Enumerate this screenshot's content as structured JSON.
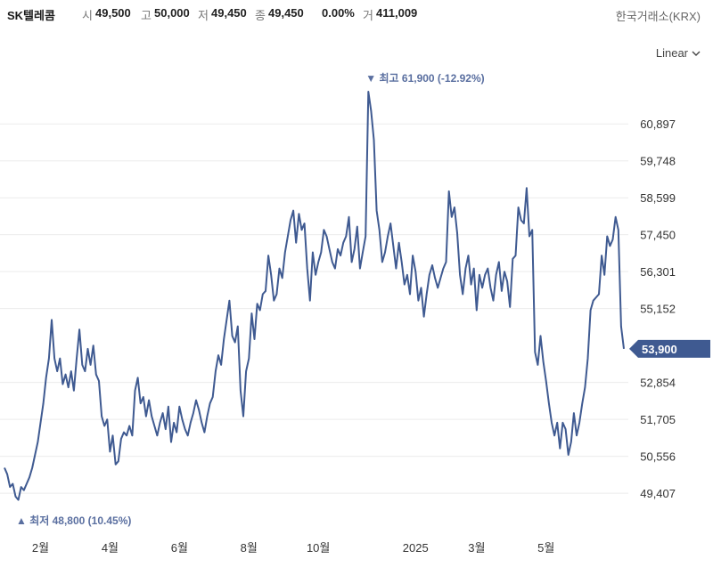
{
  "header": {
    "name": "SK텔레콤",
    "open_label": "시",
    "open": "49,500",
    "high_label": "고",
    "high": "50,000",
    "low_label": "저",
    "low": "49,450",
    "close_label": "종",
    "close": "49,450",
    "change": "0.00%",
    "volume_label": "거",
    "volume": "411,009",
    "exchange": "한국거래소(KRX)"
  },
  "scale_selector": {
    "label": "Linear",
    "icon": "chevron-down-icon"
  },
  "colors": {
    "line": "#3f5a91",
    "current_bg": "#3f5a91",
    "annotation": "#5a6fa0",
    "grid": "#ececec"
  },
  "chart_data": {
    "type": "line",
    "title": "",
    "xlabel": "",
    "ylabel": "",
    "ylim": [
      48400,
      62300
    ],
    "y_ticks": [
      "60,897",
      "59,748",
      "58,599",
      "57,450",
      "56,301",
      "55,152",
      "52,854",
      "51,705",
      "50,556",
      "49,407"
    ],
    "y_tick_values": [
      60897,
      59748,
      58599,
      57450,
      56301,
      55152,
      52854,
      51705,
      50556,
      49407
    ],
    "x_ticks": [
      "2월",
      "4월",
      "6월",
      "8월",
      "10월",
      "2025",
      "3월",
      "5월"
    ],
    "x_tick_index": [
      13,
      38,
      63,
      88,
      113,
      148,
      170,
      195
    ],
    "current_value_label": "53,900",
    "current_value": 53900,
    "max_annotation": "최고 61,900 (-12.92%)",
    "max_value": 61900,
    "min_annotation": "최저 48,800 (10.45%)",
    "min_value": 48800,
    "series": [
      {
        "values": [
          50200,
          50000,
          49600,
          49700,
          49300,
          49200,
          49600,
          49500,
          49700,
          49900,
          50200,
          50600,
          51000,
          51600,
          52200,
          53000,
          53600,
          54800,
          53600,
          53200,
          53600,
          52800,
          53100,
          52700,
          53200,
          52600,
          53600,
          54500,
          53400,
          53200,
          53900,
          53400,
          54000,
          53100,
          52900,
          51800,
          51500,
          51700,
          50700,
          51200,
          50300,
          50400,
          51100,
          51300,
          51200,
          51500,
          51200,
          52600,
          53000,
          52200,
          52400,
          51800,
          52300,
          51800,
          51500,
          51200,
          51600,
          51900,
          51400,
          52100,
          51000,
          51600,
          51300,
          52100,
          51700,
          51400,
          51200,
          51600,
          51900,
          52300,
          52000,
          51600,
          51300,
          51800,
          52200,
          52400,
          53200,
          53700,
          53400,
          54200,
          54800,
          55400,
          54300,
          54100,
          54600,
          52600,
          51800,
          53200,
          53600,
          55000,
          54200,
          55300,
          55100,
          55600,
          55700,
          56800,
          56200,
          55400,
          55600,
          56400,
          56100,
          56900,
          57400,
          57900,
          58200,
          57200,
          58100,
          57600,
          57800,
          56400,
          55400,
          56900,
          56200,
          56600,
          56900,
          57600,
          57400,
          57000,
          56600,
          56400,
          57000,
          56800,
          57200,
          57400,
          58000,
          56600,
          57000,
          57700,
          56400,
          56900,
          57400,
          61900,
          61300,
          60400,
          58200,
          57600,
          56600,
          56900,
          57400,
          57800,
          57100,
          56400,
          57200,
          56600,
          55900,
          56200,
          55600,
          56800,
          56300,
          55400,
          55800,
          54900,
          55600,
          56200,
          56500,
          56100,
          55800,
          56100,
          56400,
          56600,
          58800,
          58000,
          58300,
          57500,
          56200,
          55600,
          56400,
          56800,
          55900,
          56400,
          55100,
          56200,
          55800,
          56200,
          56400,
          55800,
          55400,
          56200,
          56600,
          55700,
          56300,
          56000,
          55200,
          56700,
          56800,
          58300,
          57900,
          57800,
          58900,
          57400,
          57600,
          53800,
          53400,
          54300,
          53500,
          52900,
          52200,
          51600,
          51200,
          51600,
          50800,
          51600,
          51400,
          50600,
          51000,
          51900,
          51200,
          51600,
          52200,
          52700,
          53600,
          55100,
          55400,
          55500,
          55600,
          56800,
          56200,
          57400,
          57100,
          57300,
          58000,
          57600,
          54600,
          53900
        ]
      }
    ]
  }
}
